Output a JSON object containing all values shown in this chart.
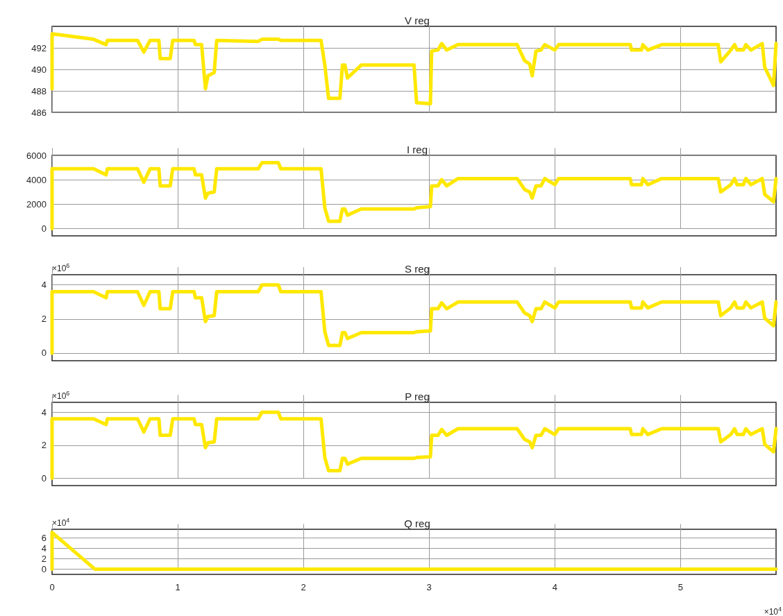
{
  "chart_data": [
    {
      "type": "line",
      "title": "V reg",
      "x": [
        0,
        0,
        0.33,
        0.43,
        0.44,
        0.68,
        0.73,
        0.78,
        0.85,
        0.86,
        0.94,
        0.96,
        1.13,
        1.14,
        1.19,
        1.22,
        1.24,
        1.29,
        1.31,
        1.64,
        1.67,
        1.8,
        1.82,
        2.14,
        2.17,
        2.2,
        2.29,
        2.31,
        2.33,
        2.35,
        2.46,
        2.88,
        2.9,
        3.01,
        3.02,
        3.07,
        3.1,
        3.14,
        3.23,
        3.7,
        3.76,
        3.8,
        3.82,
        3.85,
        3.89,
        3.92,
        4.0,
        4.03,
        4.6,
        4.61,
        4.69,
        4.7,
        4.74,
        4.85,
        5.3,
        5.32,
        5.4,
        5.43,
        5.45,
        5.5,
        5.52,
        5.56,
        5.65,
        5.67,
        5.74,
        5.76
      ],
      "series": [
        {
          "color": "#ffe800",
          "values": [
            488.2,
            493.3,
            492.8,
            492.3,
            492.7,
            492.7,
            491.6,
            492.7,
            492.7,
            491.0,
            491.0,
            492.7,
            492.7,
            492.3,
            492.3,
            488.2,
            489.4,
            489.7,
            492.7,
            492.6,
            492.8,
            492.8,
            492.7,
            492.7,
            490.4,
            487.3,
            487.3,
            490.4,
            490.4,
            489.2,
            490.4,
            490.4,
            486.9,
            486.8,
            491.7,
            491.8,
            492.4,
            491.8,
            492.3,
            492.3,
            490.8,
            490.5,
            489.4,
            491.7,
            491.8,
            492.3,
            491.8,
            492.3,
            492.3,
            491.8,
            491.8,
            492.3,
            491.8,
            492.3,
            492.3,
            490.7,
            491.8,
            492.3,
            491.8,
            491.8,
            492.3,
            491.8,
            492.4,
            490.2,
            488.5,
            492.4
          ]
        }
      ],
      "xlim": [
        0,
        5.76
      ],
      "xticks": [
        0,
        1,
        2,
        3,
        4,
        5
      ],
      "ylim": [
        486,
        494
      ],
      "yticks": [
        486,
        488,
        490,
        492
      ],
      "grid": true,
      "tick_labels": "y"
    },
    {
      "type": "line",
      "title": "I reg",
      "x": [
        0,
        0,
        0.33,
        0.43,
        0.44,
        0.68,
        0.73,
        0.78,
        0.85,
        0.86,
        0.94,
        0.96,
        1.13,
        1.14,
        1.19,
        1.22,
        1.24,
        1.29,
        1.31,
        1.64,
        1.67,
        1.8,
        1.82,
        2.14,
        2.17,
        2.2,
        2.29,
        2.31,
        2.33,
        2.35,
        2.46,
        2.88,
        2.9,
        3.01,
        3.02,
        3.07,
        3.1,
        3.14,
        3.23,
        3.7,
        3.76,
        3.8,
        3.82,
        3.85,
        3.89,
        3.92,
        4.0,
        4.03,
        4.6,
        4.61,
        4.69,
        4.7,
        4.74,
        4.85,
        5.3,
        5.32,
        5.4,
        5.43,
        5.45,
        5.5,
        5.52,
        5.56,
        5.65,
        5.67,
        5.74,
        5.76
      ],
      "series": [
        {
          "color": "#ffe800",
          "values": [
            0,
            4900,
            4900,
            4400,
            4900,
            4900,
            3800,
            4900,
            4900,
            3500,
            3500,
            4900,
            4900,
            4400,
            4400,
            2500,
            2900,
            3000,
            4900,
            4900,
            5400,
            5400,
            4900,
            4900,
            1700,
            600,
            600,
            1600,
            1600,
            1100,
            1600,
            1600,
            1700,
            1800,
            3500,
            3500,
            4000,
            3500,
            4100,
            4100,
            3200,
            3000,
            2500,
            3500,
            3500,
            4100,
            3600,
            4100,
            4100,
            3600,
            3600,
            4100,
            3600,
            4100,
            4100,
            3000,
            3600,
            4100,
            3600,
            3600,
            4100,
            3600,
            4100,
            2800,
            2200,
            4100
          ]
        }
      ],
      "xlim": [
        0,
        5.76
      ],
      "xticks": [
        0,
        1,
        2,
        3,
        4,
        5
      ],
      "ylim": [
        -600,
        6000
      ],
      "yticks": [
        0,
        2000,
        4000,
        6000
      ],
      "grid": true,
      "tick_labels": "y"
    },
    {
      "type": "line",
      "title": "S reg",
      "annotations": [
        "×10$^{6}$"
      ],
      "x": [
        0,
        0,
        0.33,
        0.43,
        0.44,
        0.68,
        0.73,
        0.78,
        0.85,
        0.86,
        0.94,
        0.96,
        1.13,
        1.14,
        1.19,
        1.22,
        1.24,
        1.29,
        1.31,
        1.64,
        1.67,
        1.8,
        1.82,
        2.14,
        2.17,
        2.2,
        2.29,
        2.31,
        2.33,
        2.35,
        2.46,
        2.88,
        2.9,
        3.01,
        3.02,
        3.07,
        3.1,
        3.14,
        3.23,
        3.7,
        3.76,
        3.8,
        3.82,
        3.85,
        3.89,
        3.92,
        4.0,
        4.03,
        4.6,
        4.61,
        4.69,
        4.7,
        4.74,
        4.85,
        5.3,
        5.32,
        5.4,
        5.43,
        5.45,
        5.5,
        5.52,
        5.56,
        5.65,
        5.67,
        5.74,
        5.76
      ],
      "series": [
        {
          "color": "#ffe800",
          "values": [
            0,
            3.6,
            3.6,
            3.25,
            3.6,
            3.6,
            2.8,
            3.6,
            3.6,
            2.6,
            2.6,
            3.6,
            3.6,
            3.25,
            3.25,
            1.85,
            2.15,
            2.2,
            3.6,
            3.6,
            4.0,
            4.0,
            3.6,
            3.6,
            1.25,
            0.45,
            0.45,
            1.2,
            1.2,
            0.85,
            1.2,
            1.2,
            1.25,
            1.3,
            2.6,
            2.6,
            2.95,
            2.6,
            3.0,
            3.0,
            2.35,
            2.2,
            1.85,
            2.6,
            2.6,
            3.0,
            2.65,
            3.0,
            3.0,
            2.65,
            2.65,
            3.0,
            2.65,
            3.0,
            3.0,
            2.2,
            2.65,
            3.0,
            2.65,
            2.65,
            3.0,
            2.65,
            3.0,
            2.05,
            1.6,
            3.0
          ]
        }
      ],
      "xlim": [
        0,
        5.76
      ],
      "xticks": [
        0,
        1,
        2,
        3,
        4,
        5
      ],
      "ylim": [
        -0.45,
        4.6
      ],
      "yticks": [
        0,
        2,
        4
      ],
      "grid": true,
      "tick_labels": "y"
    },
    {
      "type": "line",
      "title": "P reg",
      "annotations": [
        "×10$^{6}$"
      ],
      "x": [
        0,
        0,
        0.33,
        0.43,
        0.44,
        0.68,
        0.73,
        0.78,
        0.85,
        0.86,
        0.94,
        0.96,
        1.13,
        1.14,
        1.19,
        1.22,
        1.24,
        1.29,
        1.31,
        1.64,
        1.67,
        1.8,
        1.82,
        2.14,
        2.17,
        2.2,
        2.29,
        2.31,
        2.33,
        2.35,
        2.46,
        2.88,
        2.9,
        3.01,
        3.02,
        3.07,
        3.1,
        3.14,
        3.23,
        3.7,
        3.76,
        3.8,
        3.82,
        3.85,
        3.89,
        3.92,
        4.0,
        4.03,
        4.6,
        4.61,
        4.69,
        4.7,
        4.74,
        4.85,
        5.3,
        5.32,
        5.4,
        5.43,
        5.45,
        5.5,
        5.52,
        5.56,
        5.65,
        5.67,
        5.74,
        5.76
      ],
      "series": [
        {
          "color": "#ffe800",
          "values": [
            0,
            3.6,
            3.6,
            3.25,
            3.6,
            3.6,
            2.8,
            3.6,
            3.6,
            2.6,
            2.6,
            3.6,
            3.6,
            3.25,
            3.25,
            1.85,
            2.15,
            2.2,
            3.6,
            3.6,
            4.0,
            4.0,
            3.6,
            3.6,
            1.25,
            0.45,
            0.45,
            1.2,
            1.2,
            0.85,
            1.2,
            1.2,
            1.25,
            1.3,
            2.6,
            2.6,
            2.95,
            2.6,
            3.0,
            3.0,
            2.35,
            2.2,
            1.85,
            2.6,
            2.6,
            3.0,
            2.65,
            3.0,
            3.0,
            2.65,
            2.65,
            3.0,
            2.65,
            3.0,
            3.0,
            2.2,
            2.65,
            3.0,
            2.65,
            2.65,
            3.0,
            2.65,
            3.0,
            2.05,
            1.6,
            3.0
          ]
        }
      ],
      "xlim": [
        0,
        5.76
      ],
      "xticks": [
        0,
        1,
        2,
        3,
        4,
        5
      ],
      "ylim": [
        -0.45,
        4.6
      ],
      "yticks": [
        0,
        2,
        4
      ],
      "grid": true,
      "tick_labels": "y"
    },
    {
      "type": "line",
      "title": "Q reg",
      "annotations": [
        "×10$^{4}$",
        "×10$^{4}$"
      ],
      "x": [
        0,
        0,
        0.34,
        5.76
      ],
      "series": [
        {
          "color": "#ffe800",
          "values": [
            0,
            7,
            0,
            0
          ]
        }
      ],
      "xlim": [
        0,
        5.76
      ],
      "xticks": [
        0,
        1,
        2,
        3,
        4,
        5
      ],
      "ylim": [
        -1,
        7.6
      ],
      "yticks": [
        0,
        2,
        4,
        6
      ],
      "grid": true
    }
  ]
}
